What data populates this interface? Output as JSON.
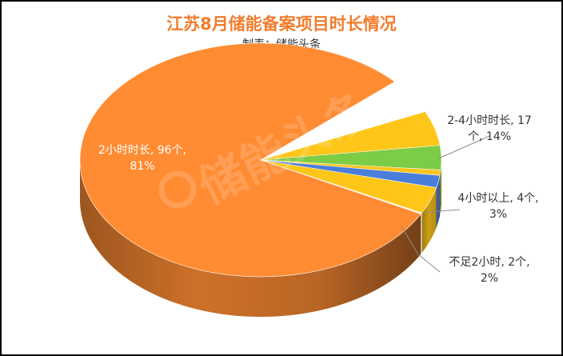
{
  "chart_data": {
    "type": "pie",
    "title": "江苏8月储能备案项目时长情况",
    "subtitle": "制表：储能头条",
    "watermark": "储能头条",
    "slices": [
      {
        "name": "2小时时长",
        "value": 96,
        "unit": "个",
        "percent": "81%",
        "color": "#FF8C33",
        "label_lines": [
          "2小时时长, 96个,",
          "81%"
        ]
      },
      {
        "name": "2-4小时时长",
        "value": 17,
        "unit": "个",
        "percent": "14%",
        "color": "#FFC61A",
        "label_lines": [
          "2-4小时时长, 17",
          "个, 14%"
        ]
      },
      {
        "name": "4小时以上",
        "value": 4,
        "unit": "个",
        "percent": "3%",
        "color": "#7DCC45",
        "label_lines": [
          "4小时以上, 4个,",
          "3%"
        ]
      },
      {
        "name": "不足2小时",
        "value": 2,
        "unit": "个",
        "percent": "2%",
        "color": "#4A7EDA",
        "label_lines": [
          "不足2小时, 2个,",
          "2%"
        ]
      }
    ],
    "title_color": "#F27C2C",
    "text_color": "#333333"
  }
}
